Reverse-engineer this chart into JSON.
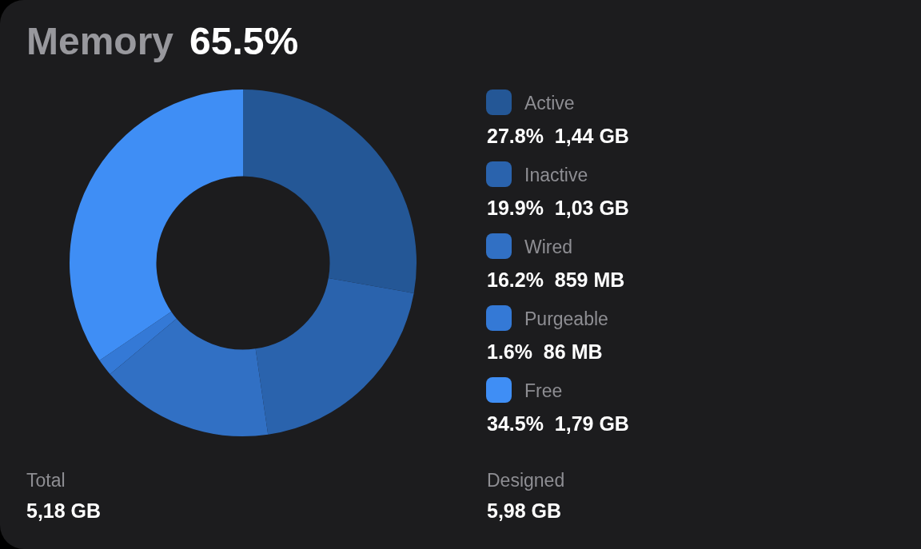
{
  "chart_data": {
    "type": "donut",
    "title": "Memory",
    "subtitle": "65.5%",
    "categories": [
      "Active",
      "Inactive",
      "Wired",
      "Purgeable",
      "Free"
    ],
    "values": [
      27.8,
      19.9,
      16.2,
      1.6,
      34.5
    ],
    "colors": [
      "#245796",
      "#2a63ad",
      "#3170c4",
      "#3479d6",
      "#3f8ef5"
    ],
    "value_labels": [
      "27.8%  1,44 GB",
      "19.9%  1,03 GB",
      "16.2%  859 MB",
      "1.6%  86 MB",
      "34.5%  1,79 GB"
    ],
    "legend": "right",
    "annotations": [
      "Total",
      "5,18 GB",
      "Designed",
      "5,98 GB"
    ]
  }
}
